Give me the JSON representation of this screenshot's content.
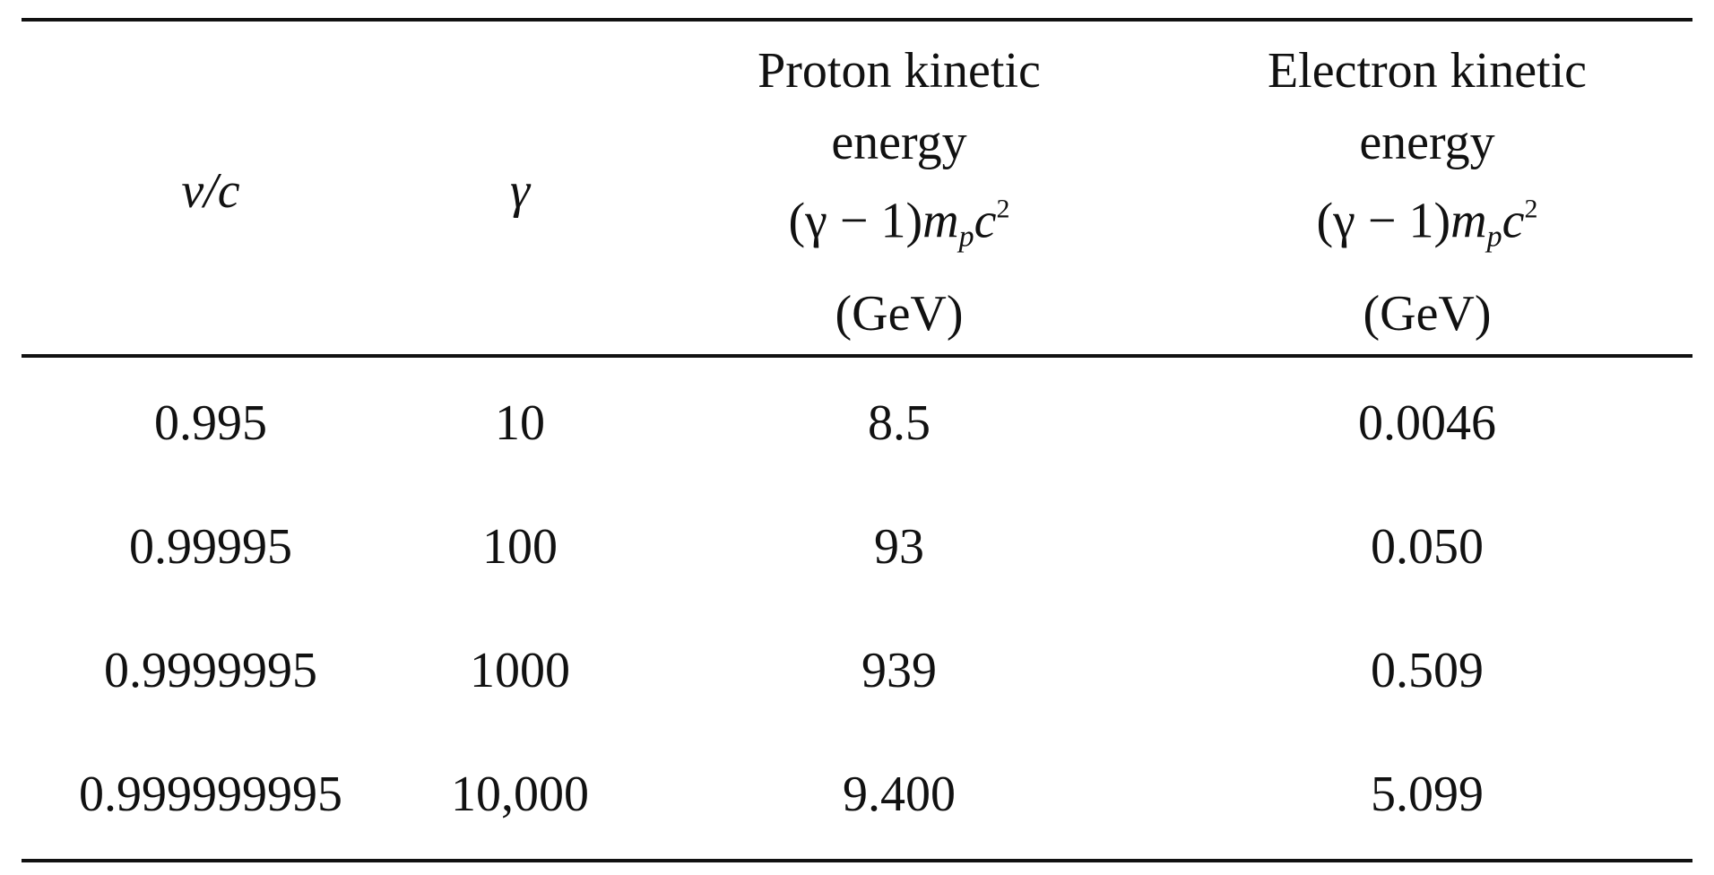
{
  "table": {
    "header": {
      "vc": "v/c",
      "gamma": "γ",
      "proton": {
        "label": [
          "Proton kinetic",
          "energy"
        ],
        "formula": [
          "(γ − 1)",
          "m",
          "p",
          "c",
          "2"
        ],
        "unit": "(GeV)"
      },
      "electron": {
        "label": [
          "Electron kinetic",
          "energy"
        ],
        "formula": [
          "(γ − 1)",
          "m",
          "p",
          "c",
          "2"
        ],
        "unit": "(GeV)"
      }
    },
    "rows": [
      [
        "0.995",
        "10",
        "8.5",
        "0.0046"
      ],
      [
        "0.99995",
        "100",
        "93",
        "0.050"
      ],
      [
        "0.9999995",
        "1000",
        "939",
        "0.509"
      ],
      [
        "0.999999995",
        "10,000",
        "9.400",
        "5.099"
      ]
    ]
  }
}
